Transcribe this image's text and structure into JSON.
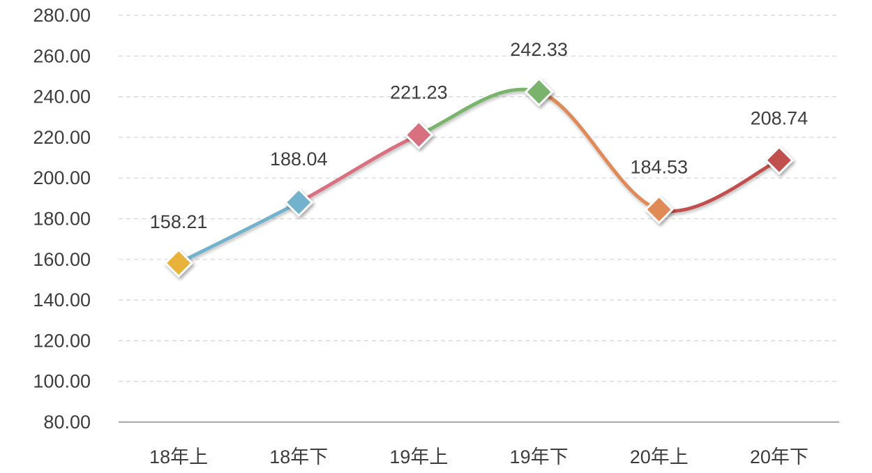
{
  "chart_data": {
    "type": "line",
    "title": "",
    "xlabel": "",
    "ylabel": "",
    "categories": [
      "18年上",
      "18年下",
      "19年上",
      "19年下",
      "20年上",
      "20年下"
    ],
    "values": [
      158.21,
      188.04,
      221.23,
      242.33,
      184.53,
      208.74
    ],
    "value_labels": [
      "158.21",
      "188.04",
      "221.23",
      "242.33",
      "184.53",
      "208.74"
    ],
    "point_colors": [
      "#e8b23a",
      "#72b2cc",
      "#d9707f",
      "#7ab46c",
      "#e08a58",
      "#c0504d"
    ],
    "ylim": [
      80,
      280
    ],
    "yticks": [
      80,
      100,
      120,
      140,
      160,
      180,
      200,
      220,
      240,
      260,
      280
    ],
    "ytick_labels": [
      "80.00",
      "100.00",
      "120.00",
      "140.00",
      "160.00",
      "180.00",
      "200.00",
      "220.00",
      "240.00",
      "260.00",
      "280.00"
    ],
    "grid": true,
    "smooth": true,
    "marker": "diamond",
    "legend": "none"
  }
}
